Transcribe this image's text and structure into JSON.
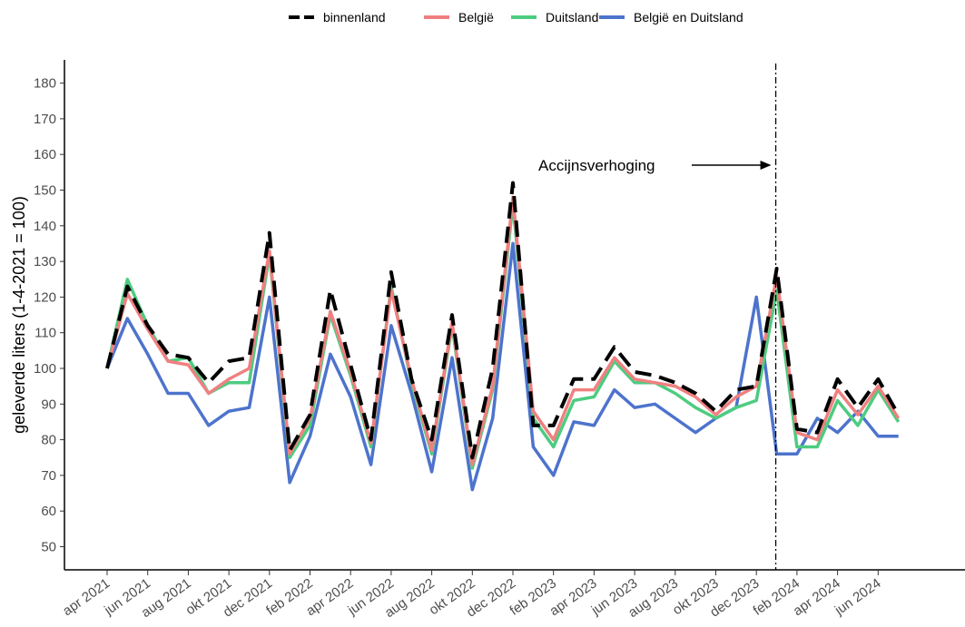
{
  "chart_data": {
    "type": "line",
    "ylabel": "geleverde liters (1-4-2021 = 100)",
    "xlabel": "",
    "ylim": [
      43,
      187
    ],
    "yticks": [
      50,
      60,
      70,
      80,
      90,
      100,
      110,
      120,
      130,
      140,
      150,
      160,
      170,
      180
    ],
    "grid": false,
    "legend_position": "top",
    "x": [
      "2021-04",
      "2021-05",
      "2021-06",
      "2021-07",
      "2021-08",
      "2021-09",
      "2021-10",
      "2021-11",
      "2021-12",
      "2022-01",
      "2022-02",
      "2022-03",
      "2022-04",
      "2022-05",
      "2022-06",
      "2022-07",
      "2022-08",
      "2022-09",
      "2022-10",
      "2022-11",
      "2022-12",
      "2023-01",
      "2023-02",
      "2023-03",
      "2023-04",
      "2023-05",
      "2023-06",
      "2023-07",
      "2023-08",
      "2023-09",
      "2023-10",
      "2023-11",
      "2023-12",
      "2024-01",
      "2024-02",
      "2024-03",
      "2024-04",
      "2024-05",
      "2024-06",
      "2024-07"
    ],
    "xtick_labels": [
      "apr 2021",
      "jun 2021",
      "aug 2021",
      "okt 2021",
      "dec 2021",
      "feb 2022",
      "apr 2022",
      "jun 2022",
      "aug 2022",
      "okt 2022",
      "dec 2022",
      "feb 2023",
      "apr 2023",
      "jun 2023",
      "aug 2023",
      "okt 2023",
      "dec 2023",
      "feb 2024",
      "apr 2024",
      "jun 2024"
    ],
    "xtick_index": [
      0,
      2,
      4,
      6,
      8,
      10,
      12,
      14,
      16,
      18,
      20,
      22,
      24,
      26,
      28,
      30,
      32,
      34,
      36,
      38
    ],
    "series": [
      {
        "name": "binnenland",
        "color": "#000000",
        "style": "dashed",
        "values": [
          100,
          123,
          112,
          104,
          103,
          96,
          102,
          103,
          138,
          77,
          87,
          122,
          101,
          80,
          127,
          97,
          80,
          115,
          75,
          100,
          152,
          84,
          84,
          97,
          97,
          106,
          99,
          98,
          96,
          93,
          88,
          94,
          95,
          128,
          83,
          82,
          97,
          89,
          97,
          87
        ]
      },
      {
        "name": "België",
        "color": "#f08080",
        "style": "solid",
        "values": [
          100,
          121,
          111,
          102,
          101,
          93,
          97,
          100,
          133,
          76,
          86,
          116,
          99,
          79,
          122,
          97,
          77,
          113,
          73,
          95,
          148,
          88,
          80,
          94,
          94,
          103,
          97,
          96,
          95,
          92,
          87,
          92,
          95,
          126,
          82,
          80,
          94,
          87,
          95,
          86
        ]
      },
      {
        "name": "Duitsland",
        "color": "#4dcc80",
        "style": "solid",
        "values": [
          100,
          125,
          112,
          102,
          103,
          93,
          96,
          96,
          132,
          75,
          84,
          115,
          98,
          78,
          123,
          96,
          76,
          112,
          72,
          94,
          146,
          86,
          78,
          91,
          92,
          102,
          96,
          96,
          93,
          89,
          86,
          89,
          91,
          122,
          78,
          78,
          91,
          84,
          94,
          85
        ]
      },
      {
        "name": "België en Duitsland",
        "color": "#4d73cc",
        "style": "solid",
        "values": [
          100,
          114,
          104,
          93,
          93,
          84,
          88,
          89,
          120,
          68,
          81,
          104,
          92,
          73,
          112,
          93,
          71,
          103,
          66,
          86,
          135,
          78,
          70,
          85,
          84,
          94,
          89,
          90,
          86,
          82,
          86,
          89,
          120,
          76,
          76,
          86,
          82,
          88,
          81,
          81
        ]
      }
    ],
    "annotations": [
      {
        "text": "Accijnsverhoging",
        "x": "2023-11",
        "y": 157,
        "arrow_to": "2024-01"
      }
    ],
    "vlines": [
      {
        "x": "2024-01",
        "style": "dashdot"
      }
    ]
  }
}
